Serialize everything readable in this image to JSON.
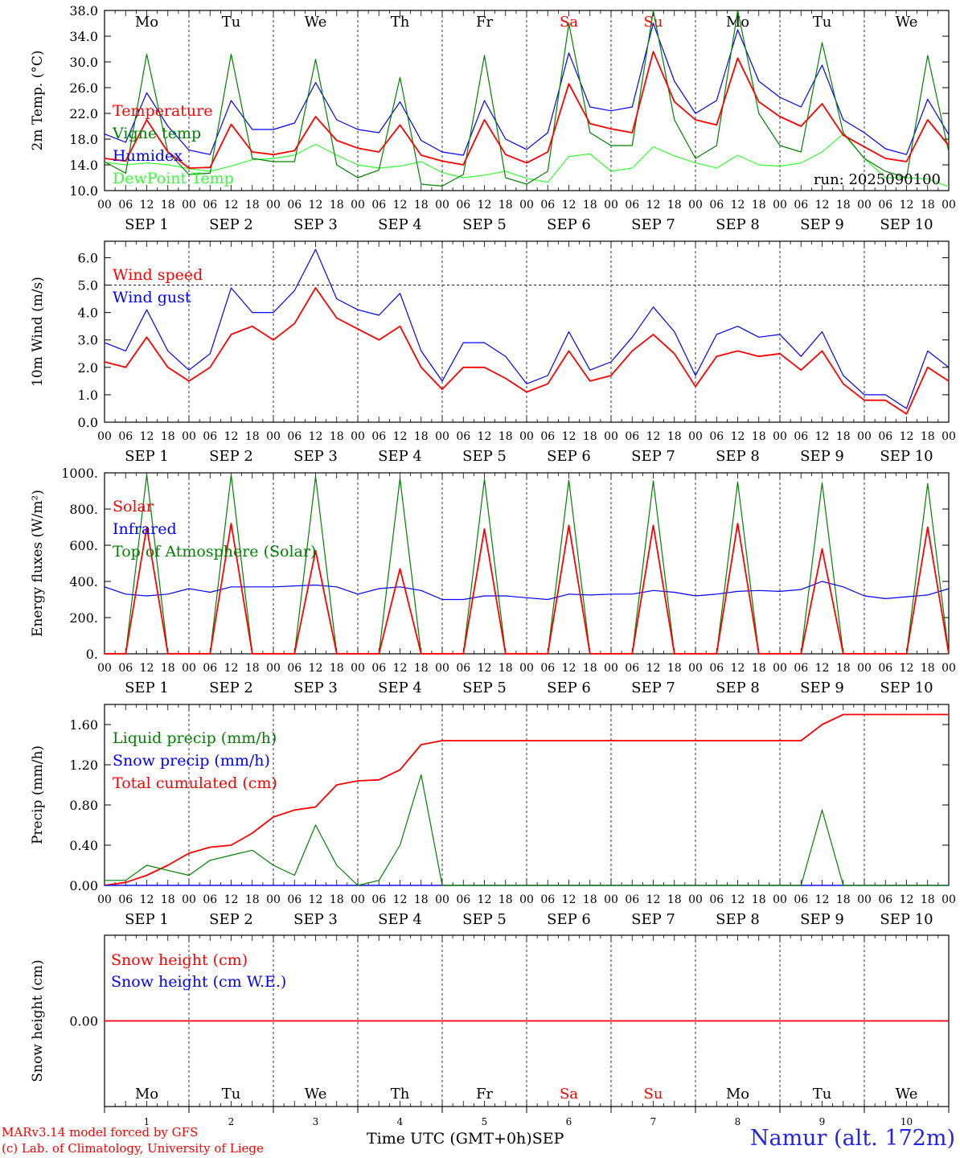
{
  "chart_data": {
    "type": "line",
    "run_label": "run: 2025090100",
    "x_hours": [
      0,
      6,
      12,
      18,
      24,
      30,
      36,
      42,
      48,
      54,
      60,
      66,
      72,
      78,
      84,
      90,
      96,
      102,
      108,
      114,
      120,
      126,
      132,
      138,
      144,
      150,
      156,
      162,
      168,
      174,
      180,
      186,
      192,
      198,
      204,
      210,
      216,
      222,
      228,
      234,
      240
    ],
    "x_tick_labels": [
      "00",
      "06",
      "12",
      "18",
      "00",
      "06",
      "12",
      "18",
      "00",
      "06",
      "12",
      "18",
      "00",
      "06",
      "12",
      "18",
      "00",
      "06",
      "12",
      "18",
      "00",
      "06",
      "12",
      "18",
      "00",
      "06",
      "12",
      "18",
      "00",
      "06",
      "12",
      "18",
      "00",
      "06",
      "12",
      "18",
      "00",
      "06",
      "12",
      "18",
      "00"
    ],
    "days": [
      {
        "dow": "Mo",
        "date": "SEP  1",
        "num": "1",
        "weekend": false
      },
      {
        "dow": "Tu",
        "date": "SEP  2",
        "num": "2",
        "weekend": false
      },
      {
        "dow": "We",
        "date": "SEP  3",
        "num": "3",
        "weekend": false
      },
      {
        "dow": "Th",
        "date": "SEP  4",
        "num": "4",
        "weekend": false
      },
      {
        "dow": "Fr",
        "date": "SEP  5",
        "num": "5",
        "weekend": false
      },
      {
        "dow": "Sa",
        "date": "SEP  6",
        "num": "6",
        "weekend": true
      },
      {
        "dow": "Su",
        "date": "SEP  7",
        "num": "7",
        "weekend": true
      },
      {
        "dow": "Mo",
        "date": "SEP  8",
        "num": "8",
        "weekend": false
      },
      {
        "dow": "Tu",
        "date": "SEP  9",
        "num": "9",
        "weekend": false
      },
      {
        "dow": "We",
        "date": "SEP 10",
        "num": "10",
        "weekend": false
      }
    ],
    "panels": [
      {
        "id": "temperature",
        "ylabel": "2m Temp. (°C)",
        "ylim": [
          10,
          38
        ],
        "yticks": [
          10,
          14,
          18,
          22,
          26,
          30,
          34,
          38
        ],
        "ytick_labels": [
          "10.0",
          "14.0",
          "18.0",
          "22.0",
          "26.0",
          "30.0",
          "34.0",
          "38.0"
        ],
        "show_dow": true,
        "series": [
          {
            "name": "Temperature",
            "color": "#ff0000",
            "values": [
              15.0,
              14.6,
              21.0,
              16.0,
              13.5,
              13.6,
              20.3,
              16.0,
              15.6,
              16.2,
              21.5,
              17.8,
              16.6,
              16.0,
              20.2,
              15.5,
              14.6,
              14.0,
              21.0,
              15.6,
              14.3,
              16.0,
              26.6,
              20.4,
              19.6,
              19.0,
              31.6,
              23.8,
              21.0,
              20.2,
              30.6,
              23.8,
              21.5,
              20.0,
              23.5,
              18.6,
              16.8,
              15.0,
              14.5,
              21.0,
              17.0
            ]
          },
          {
            "name": "Vigne temp",
            "color": "#008000",
            "values": [
              14.5,
              12.7,
              31.2,
              16.0,
              12.5,
              12.7,
              31.2,
              15.0,
              14.5,
              14.5,
              30.4,
              14.0,
              12.0,
              13.2,
              27.6,
              11.0,
              10.7,
              12.5,
              31.0,
              12.0,
              11.0,
              13.0,
              36.0,
              19.0,
              17.0,
              17.0,
              38.0,
              21.0,
              15.0,
              17.0,
              38.0,
              22.0,
              17.0,
              16.0,
              33.0,
              19.0,
              15.0,
              13.0,
              12.0,
              31.0,
              16.0
            ]
          },
          {
            "name": "Humidex",
            "color": "#0000ff",
            "values": [
              18.8,
              17.5,
              25.2,
              20.0,
              16.3,
              15.6,
              24.0,
              19.5,
              19.5,
              20.5,
              26.8,
              21.0,
              19.5,
              19.0,
              23.8,
              17.8,
              16.0,
              15.5,
              24.0,
              18.0,
              16.4,
              19.0,
              31.4,
              23.0,
              22.4,
              23.0,
              36.0,
              27.0,
              22.0,
              24.0,
              35.0,
              27.0,
              24.5,
              23.0,
              29.5,
              21.0,
              19.0,
              16.5,
              15.6,
              24.2,
              18.7
            ]
          },
          {
            "name": "DewPoint Temp",
            "color": "#33ff33",
            "values": [
              14.4,
              14.0,
              14.3,
              14.0,
              13.4,
              13.0,
              13.8,
              14.8,
              15.0,
              15.5,
              17.2,
              15.5,
              14.0,
              13.5,
              13.8,
              14.5,
              12.8,
              12.0,
              12.4,
              13.0,
              11.9,
              11.3,
              15.3,
              15.7,
              13.0,
              13.5,
              16.8,
              15.4,
              14.3,
              13.5,
              15.5,
              14.0,
              13.8,
              14.3,
              16.0,
              18.8,
              15.0,
              12.0,
              12.0,
              11.8,
              10.6
            ]
          }
        ]
      },
      {
        "id": "wind",
        "ylabel": "10m Wind (m/s)",
        "ylim": [
          0,
          6.6
        ],
        "yticks": [
          0,
          1,
          2,
          3,
          4,
          5,
          6
        ],
        "ytick_labels": [
          "0.0",
          "1.0",
          "2.0",
          "3.0",
          "4.0",
          "5.0",
          "6.0"
        ],
        "hline": 5.0,
        "show_dow": false,
        "series": [
          {
            "name": "Wind speed",
            "color": "#ff0000",
            "values": [
              2.2,
              2.0,
              3.1,
              2.0,
              1.5,
              2.0,
              3.2,
              3.5,
              3.0,
              3.6,
              4.9,
              3.8,
              3.4,
              3.0,
              3.5,
              2.0,
              1.2,
              2.0,
              2.0,
              1.6,
              1.1,
              1.4,
              2.6,
              1.5,
              1.7,
              2.6,
              3.2,
              2.5,
              1.3,
              2.4,
              2.6,
              2.4,
              2.5,
              1.9,
              2.6,
              1.4,
              0.8,
              0.8,
              0.3,
              2.0,
              1.5
            ]
          },
          {
            "name": "Wind gust",
            "color": "#0000ff",
            "values": [
              2.9,
              2.6,
              4.1,
              2.6,
              1.9,
              2.5,
              4.9,
              4.0,
              4.0,
              4.8,
              6.3,
              4.5,
              4.1,
              3.9,
              4.7,
              2.6,
              1.5,
              2.9,
              2.9,
              2.4,
              1.4,
              1.7,
              3.3,
              1.9,
              2.2,
              3.1,
              4.2,
              3.3,
              1.7,
              3.2,
              3.5,
              3.1,
              3.2,
              2.4,
              3.3,
              1.7,
              1.0,
              1.0,
              0.5,
              2.6,
              2.0
            ]
          }
        ]
      },
      {
        "id": "energy",
        "ylabel": "Energy fluxes (W/m²)",
        "ylim": [
          0,
          1000
        ],
        "yticks": [
          0,
          200,
          400,
          600,
          800,
          1000
        ],
        "ytick_labels": [
          "0.",
          "200.",
          "400.",
          "600.",
          "800.",
          "1000."
        ],
        "show_dow": false,
        "series": [
          {
            "name": "Solar",
            "color": "#ff0000",
            "values": [
              0,
              0,
              700,
              0,
              0,
              0,
              720,
              0,
              0,
              0,
              570,
              0,
              0,
              0,
              470,
              0,
              0,
              0,
              690,
              0,
              0,
              0,
              710,
              0,
              0,
              0,
              710,
              0,
              0,
              0,
              720,
              0,
              0,
              0,
              580,
              0,
              0,
              0,
              0,
              700,
              0
            ]
          },
          {
            "name": "Infrared",
            "color": "#0000ff",
            "values": [
              370,
              330,
              320,
              330,
              360,
              340,
              370,
              370,
              370,
              375,
              380,
              370,
              330,
              360,
              370,
              350,
              300,
              300,
              320,
              320,
              310,
              300,
              330,
              325,
              330,
              330,
              350,
              340,
              320,
              330,
              345,
              350,
              345,
              355,
              400,
              370,
              320,
              305,
              315,
              325,
              360
            ]
          },
          {
            "name": "Top of Atmosphere (Solar)",
            "color": "#008000",
            "values": [
              0,
              0,
              990,
              0,
              0,
              0,
              990,
              0,
              0,
              0,
              980,
              0,
              0,
              0,
              970,
              0,
              0,
              0,
              965,
              0,
              0,
              0,
              960,
              0,
              0,
              0,
              955,
              0,
              0,
              0,
              950,
              0,
              0,
              0,
              945,
              0,
              0,
              0,
              0,
              940,
              0
            ]
          }
        ]
      },
      {
        "id": "precip",
        "ylabel": "Precip (mm/h)",
        "ylim": [
          0,
          1.8
        ],
        "yticks": [
          0,
          0.4,
          0.8,
          1.2,
          1.6
        ],
        "ytick_labels": [
          "0.00",
          "0.40",
          "0.80",
          "1.20",
          "1.60"
        ],
        "show_dow": false,
        "series": [
          {
            "name": "Liquid precip (mm/h)",
            "color": "#008000",
            "values": [
              0.05,
              0.05,
              0.2,
              0.15,
              0.1,
              0.25,
              0.3,
              0.35,
              0.2,
              0.1,
              0.6,
              0.2,
              0.0,
              0.05,
              0.4,
              1.1,
              0.0,
              0.0,
              0.0,
              0.0,
              0.0,
              0.0,
              0.0,
              0.0,
              0.0,
              0.0,
              0.0,
              0.0,
              0.0,
              0.0,
              0.0,
              0.0,
              0.0,
              0.0,
              0.75,
              0.0,
              0.0,
              0.0,
              0.0,
              0.0,
              0.0
            ]
          },
          {
            "name": "Snow precip (mm/h)",
            "color": "#0000ff",
            "values": [
              0,
              0,
              0,
              0,
              0,
              0,
              0,
              0,
              0,
              0,
              0,
              0,
              0,
              0,
              0,
              0,
              0,
              0,
              0,
              0,
              0,
              0,
              0,
              0,
              0,
              0,
              0,
              0,
              0,
              0,
              0,
              0,
              0,
              0,
              0,
              0,
              0,
              0,
              0,
              0,
              0
            ]
          },
          {
            "name": "Total cumulated (cm)",
            "color": "#ff0000",
            "values": [
              0.0,
              0.03,
              0.1,
              0.2,
              0.32,
              0.38,
              0.4,
              0.52,
              0.68,
              0.75,
              0.78,
              1.0,
              1.04,
              1.05,
              1.15,
              1.4,
              1.44,
              1.44,
              1.44,
              1.44,
              1.44,
              1.44,
              1.44,
              1.44,
              1.44,
              1.44,
              1.44,
              1.44,
              1.44,
              1.44,
              1.44,
              1.44,
              1.44,
              1.44,
              1.6,
              1.7,
              1.7,
              1.7,
              1.7,
              1.7,
              1.7
            ]
          }
        ]
      },
      {
        "id": "snow",
        "ylabel": "Snow height (cm)",
        "ylim": [
          -1,
          1
        ],
        "yticks": [
          0
        ],
        "ytick_labels": [
          "0.00"
        ],
        "show_dow": false,
        "series": [
          {
            "name": "Snow height (cm)",
            "color": "#ff0000",
            "values": [
              0,
              0,
              0,
              0,
              0,
              0,
              0,
              0,
              0,
              0,
              0,
              0,
              0,
              0,
              0,
              0,
              0,
              0,
              0,
              0,
              0,
              0,
              0,
              0,
              0,
              0,
              0,
              0,
              0,
              0,
              0,
              0,
              0,
              0,
              0,
              0,
              0,
              0,
              0,
              0,
              0
            ]
          },
          {
            "name": "Snow height (cm W.E.)",
            "color": "#0000ff",
            "values": [
              0,
              0,
              0,
              0,
              0,
              0,
              0,
              0,
              0,
              0,
              0,
              0,
              0,
              0,
              0,
              0,
              0,
              0,
              0,
              0,
              0,
              0,
              0,
              0,
              0,
              0,
              0,
              0,
              0,
              0,
              0,
              0,
              0,
              0,
              0,
              0,
              0,
              0,
              0,
              0,
              0
            ]
          }
        ]
      }
    ],
    "xlabel": "Time UTC (GMT+0h)",
    "xlabel_month": "SEP"
  },
  "footer": {
    "model_line": "MARv3.14 model forced by GFS",
    "copyright_line": "(c) Lab. of Climatology, University of Liege",
    "station": "Namur (alt. 172m)"
  },
  "colors": {
    "weekend": "#ff0000",
    "station": "#2222ee",
    "axis": "#000000"
  }
}
